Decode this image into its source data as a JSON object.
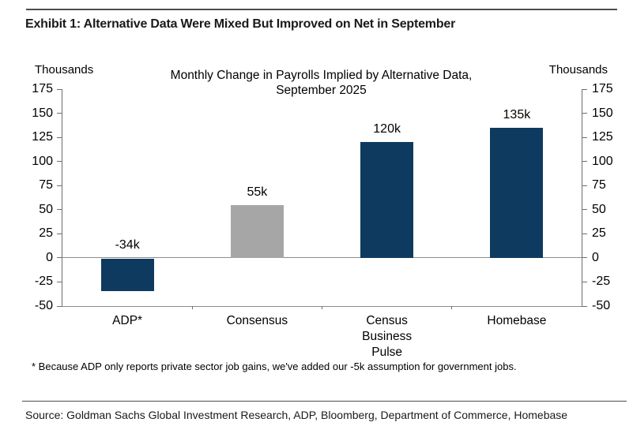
{
  "page": {
    "exhibit_title": "Exhibit 1: Alternative Data Were Mixed But Improved on Net in September",
    "footnote": "* Because ADP only reports private sector job gains, we've added our -5k assumption for government jobs.",
    "source": "Source: Goldman Sachs Global Investment Research, ADP, Bloomberg, Department of Commerce, Homebase"
  },
  "chart_data": {
    "type": "bar",
    "title": "Monthly Change in Payrolls Implied by Alternative Data, September 2025",
    "title_line1": "Monthly Change in Payrolls Implied by Alternative Data,",
    "title_line2": "September 2025",
    "left_axis_label": "Thousands",
    "right_axis_label": "Thousands",
    "categories": [
      "ADP*",
      "Consensus",
      "Census\nBusiness\nPulse",
      "Homebase"
    ],
    "values": [
      -34,
      55,
      120,
      135
    ],
    "value_labels": [
      "-34k",
      "55k",
      "120k",
      "135k"
    ],
    "bar_colors": [
      "#0e3a60",
      "#a6a6a6",
      "#0e3a60",
      "#0e3a60"
    ],
    "ylim": [
      -50,
      175
    ],
    "ytick_step": 25,
    "yticks": [
      175,
      150,
      125,
      100,
      75,
      50,
      25,
      0,
      -25,
      -50
    ],
    "grid": false,
    "zero_line": true,
    "legend": "none",
    "colors": {
      "navy": "#0e3a60",
      "gray": "#a6a6a6",
      "axis_line": "#6e6e6e",
      "zero_line": "#8c8c8c",
      "rule": "#4d4d4d",
      "text": "#000000"
    }
  }
}
